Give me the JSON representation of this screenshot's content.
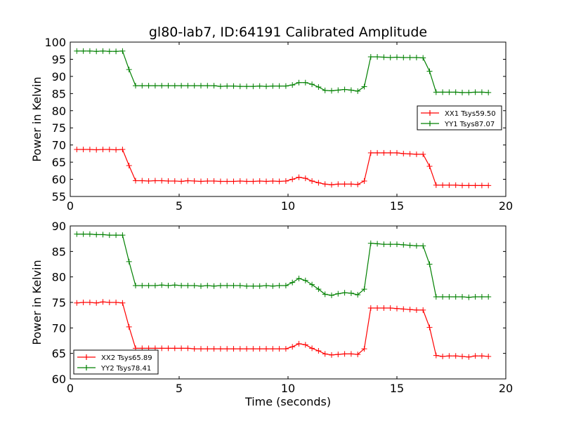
{
  "title": "gl80-lab7, ID:64191 Calibrated Amplitude",
  "colors": {
    "red": "#ff0000",
    "green": "#008000"
  },
  "chart_data": [
    {
      "type": "line",
      "ylabel": "Power in Kelvin",
      "xlabel": "",
      "xlim": [
        0,
        20
      ],
      "ylim": [
        55,
        100
      ],
      "xticks": [
        0,
        5,
        10,
        15,
        20
      ],
      "yticks": [
        55,
        60,
        65,
        70,
        75,
        80,
        85,
        90,
        95,
        100
      ],
      "legend_position": "center-right",
      "x": [
        0.3,
        0.6,
        0.9,
        1.2,
        1.5,
        1.8,
        2.1,
        2.4,
        2.7,
        3.0,
        3.3,
        3.6,
        3.9,
        4.2,
        4.5,
        4.8,
        5.1,
        5.4,
        5.7,
        6.0,
        6.3,
        6.6,
        6.9,
        7.2,
        7.5,
        7.8,
        8.1,
        8.4,
        8.7,
        9.0,
        9.3,
        9.6,
        9.9,
        10.2,
        10.5,
        10.8,
        11.1,
        11.4,
        11.7,
        12.0,
        12.3,
        12.6,
        12.9,
        13.2,
        13.5,
        13.8,
        14.1,
        14.4,
        14.7,
        15.0,
        15.3,
        15.6,
        15.9,
        16.2,
        16.5,
        16.8,
        17.1,
        17.4,
        17.7,
        18.0,
        18.3,
        18.6,
        18.9,
        19.2
      ],
      "series": [
        {
          "name": "XX1 Tsys59.50",
          "color": "#ff0000",
          "values": [
            68.7,
            68.7,
            68.7,
            68.6,
            68.7,
            68.7,
            68.6,
            68.7,
            64.0,
            59.6,
            59.6,
            59.5,
            59.6,
            59.6,
            59.5,
            59.5,
            59.4,
            59.6,
            59.5,
            59.4,
            59.5,
            59.5,
            59.4,
            59.4,
            59.4,
            59.5,
            59.4,
            59.4,
            59.5,
            59.4,
            59.5,
            59.4,
            59.5,
            60.0,
            60.6,
            60.3,
            59.5,
            59.0,
            58.6,
            58.4,
            58.6,
            58.6,
            58.6,
            58.5,
            59.5,
            67.7,
            67.7,
            67.7,
            67.7,
            67.7,
            67.5,
            67.4,
            67.3,
            67.3,
            63.8,
            58.3,
            58.3,
            58.3,
            58.3,
            58.2,
            58.2,
            58.2,
            58.2,
            58.2
          ]
        },
        {
          "name": "YY1 Tsys87.07",
          "color": "#008000",
          "values": [
            97.4,
            97.4,
            97.4,
            97.3,
            97.4,
            97.3,
            97.3,
            97.4,
            92.0,
            87.3,
            87.3,
            87.3,
            87.3,
            87.3,
            87.3,
            87.3,
            87.3,
            87.3,
            87.3,
            87.3,
            87.3,
            87.3,
            87.1,
            87.2,
            87.2,
            87.1,
            87.1,
            87.1,
            87.2,
            87.1,
            87.2,
            87.2,
            87.2,
            87.5,
            88.2,
            88.2,
            87.7,
            86.9,
            85.9,
            85.8,
            86.0,
            86.2,
            86.0,
            85.7,
            87.0,
            95.7,
            95.7,
            95.6,
            95.5,
            95.6,
            95.5,
            95.5,
            95.5,
            95.4,
            91.5,
            85.4,
            85.4,
            85.4,
            85.4,
            85.3,
            85.3,
            85.4,
            85.4,
            85.3
          ]
        }
      ]
    },
    {
      "type": "line",
      "ylabel": "Power in Kelvin",
      "xlabel": "Time (seconds)",
      "xlim": [
        0,
        20
      ],
      "ylim": [
        60,
        90
      ],
      "xticks": [
        0,
        5,
        10,
        15,
        20
      ],
      "yticks": [
        60,
        65,
        70,
        75,
        80,
        85,
        90
      ],
      "legend_position": "lower-left",
      "x": [
        0.3,
        0.6,
        0.9,
        1.2,
        1.5,
        1.8,
        2.1,
        2.4,
        2.7,
        3.0,
        3.3,
        3.6,
        3.9,
        4.2,
        4.5,
        4.8,
        5.1,
        5.4,
        5.7,
        6.0,
        6.3,
        6.6,
        6.9,
        7.2,
        7.5,
        7.8,
        8.1,
        8.4,
        8.7,
        9.0,
        9.3,
        9.6,
        9.9,
        10.2,
        10.5,
        10.8,
        11.1,
        11.4,
        11.7,
        12.0,
        12.3,
        12.6,
        12.9,
        13.2,
        13.5,
        13.8,
        14.1,
        14.4,
        14.7,
        15.0,
        15.3,
        15.6,
        15.9,
        16.2,
        16.5,
        16.8,
        17.1,
        17.4,
        17.7,
        18.0,
        18.3,
        18.6,
        18.9,
        19.2
      ],
      "series": [
        {
          "name": "XX2 Tsys65.89",
          "color": "#ff0000",
          "values": [
            74.9,
            75.0,
            75.0,
            74.9,
            75.1,
            75.0,
            75.0,
            74.9,
            70.2,
            66.0,
            66.0,
            66.0,
            66.0,
            66.0,
            66.0,
            66.0,
            66.0,
            66.0,
            65.9,
            65.9,
            65.9,
            65.9,
            65.9,
            65.9,
            65.9,
            65.9,
            65.9,
            65.9,
            65.9,
            65.9,
            65.9,
            65.9,
            65.9,
            66.3,
            66.9,
            66.7,
            66.0,
            65.5,
            64.9,
            64.7,
            64.8,
            64.9,
            64.9,
            64.8,
            65.9,
            73.9,
            73.9,
            73.9,
            73.9,
            73.8,
            73.7,
            73.6,
            73.5,
            73.5,
            70.1,
            64.6,
            64.4,
            64.5,
            64.5,
            64.4,
            64.3,
            64.5,
            64.5,
            64.4
          ]
        },
        {
          "name": "YY2 Tsys78.41",
          "color": "#008000",
          "values": [
            88.4,
            88.4,
            88.4,
            88.3,
            88.3,
            88.2,
            88.2,
            88.2,
            83.0,
            78.3,
            78.3,
            78.3,
            78.3,
            78.4,
            78.3,
            78.4,
            78.3,
            78.3,
            78.3,
            78.2,
            78.3,
            78.2,
            78.3,
            78.3,
            78.3,
            78.3,
            78.2,
            78.2,
            78.2,
            78.3,
            78.2,
            78.3,
            78.3,
            78.9,
            79.7,
            79.3,
            78.5,
            77.6,
            76.6,
            76.4,
            76.7,
            76.9,
            76.8,
            76.5,
            77.6,
            86.6,
            86.5,
            86.4,
            86.4,
            86.4,
            86.3,
            86.2,
            86.1,
            86.1,
            82.5,
            76.1,
            76.1,
            76.1,
            76.1,
            76.1,
            76.0,
            76.1,
            76.1,
            76.1
          ]
        }
      ]
    }
  ]
}
